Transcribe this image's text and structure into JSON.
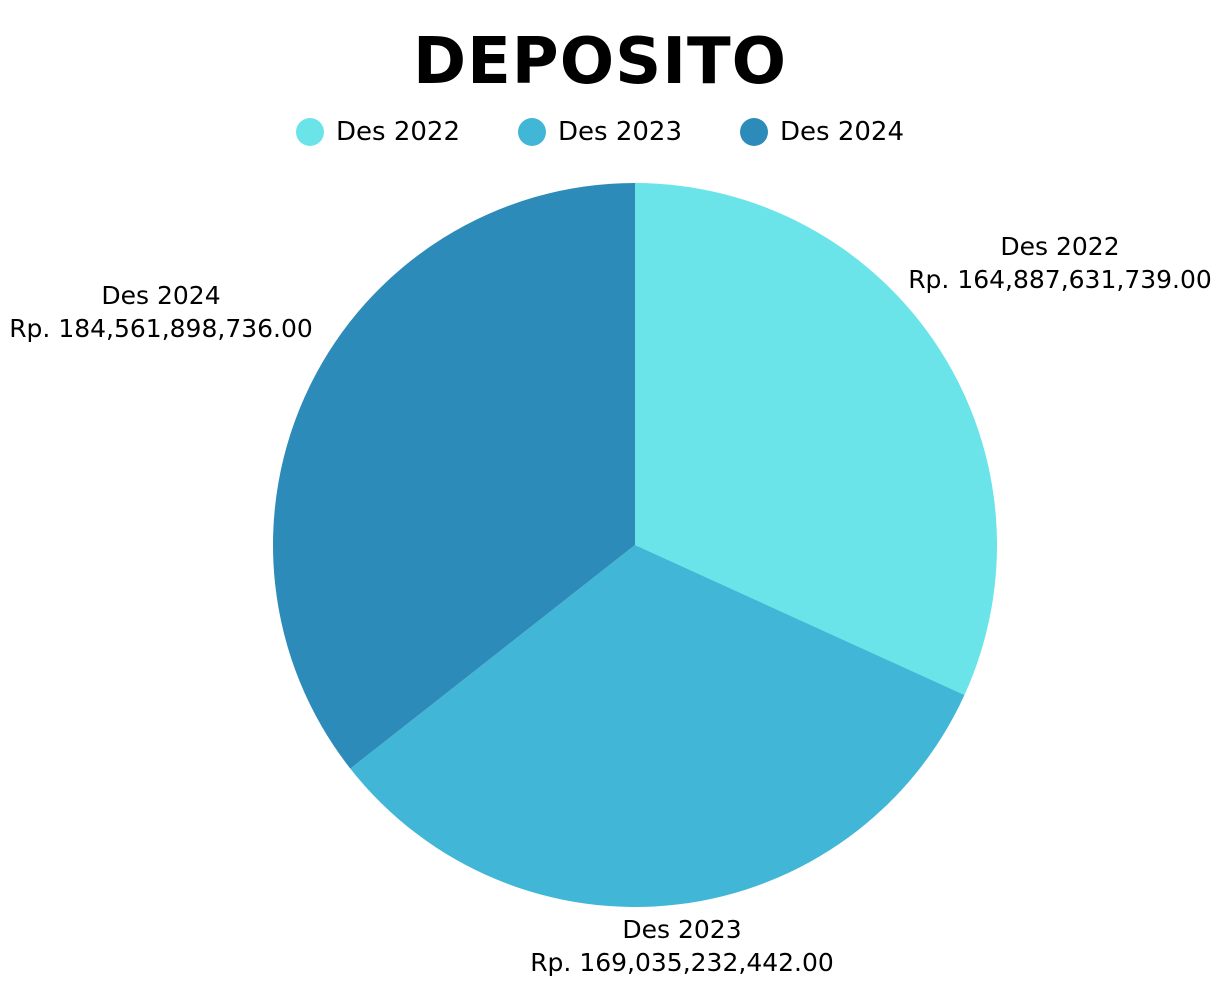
{
  "chart_data": {
    "type": "pie",
    "title": "DEPOSITO",
    "legend_position": "top",
    "categories": [
      "Des 2022",
      "Des 2023",
      "Des 2024"
    ],
    "values": [
      164887631739.0,
      169035232442.0,
      184561898736.0
    ],
    "colors": [
      "#6ae4e8",
      "#42b6d6",
      "#2d8bba"
    ],
    "data_labels": [
      {
        "category": "Des 2022",
        "value_text": "Rp. 164,887,631,739.00"
      },
      {
        "category": "Des 2023",
        "value_text": "Rp. 169,035,232,442.00"
      },
      {
        "category": "Des 2024",
        "value_text": "Rp. 184,561,898,736.00"
      }
    ]
  }
}
